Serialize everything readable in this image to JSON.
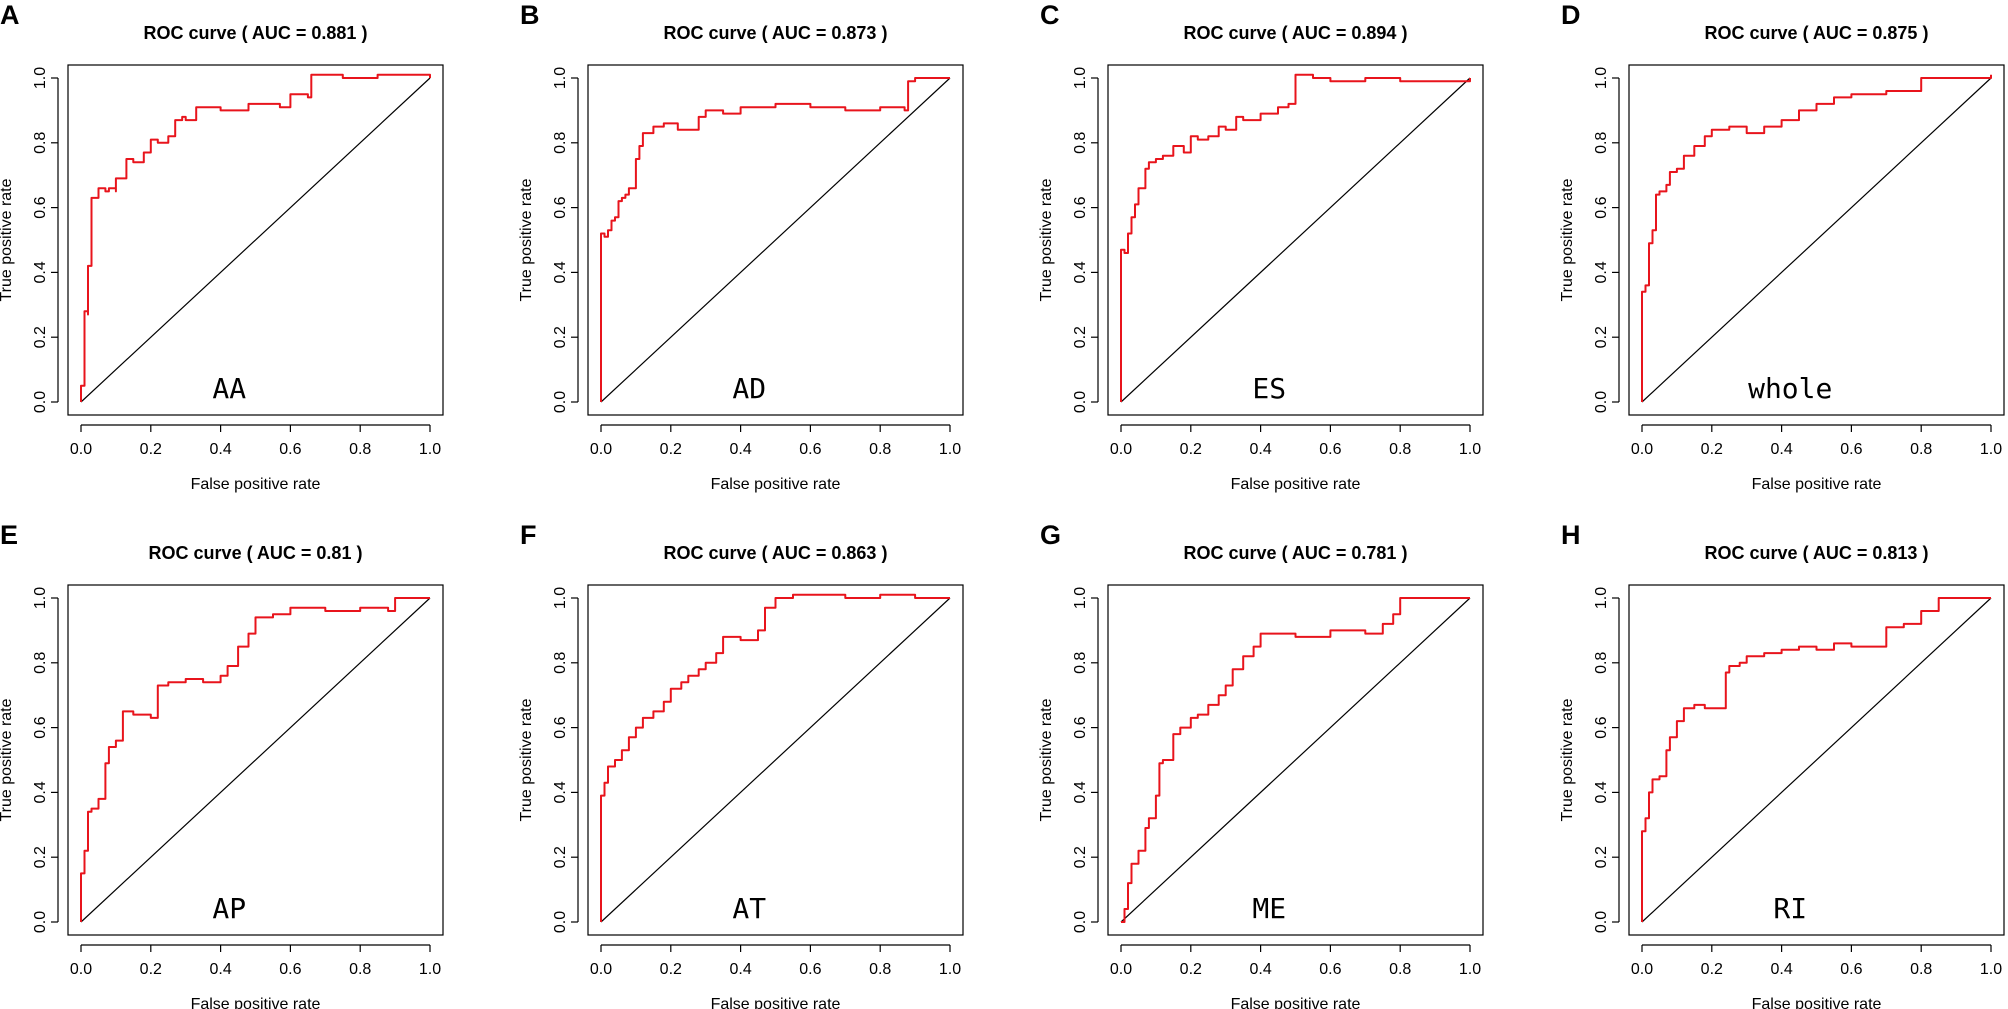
{
  "colors": {
    "curve": "#e8141c",
    "axis": "#000000",
    "background": "#ffffff"
  },
  "chart_data": [
    {
      "panel": "A",
      "type": "line",
      "title": "ROC curve ( AUC =  0.881 )",
      "label": "AA",
      "xlabel": "False positive rate",
      "ylabel": "True positive rate",
      "xlim": [
        0,
        1
      ],
      "ylim": [
        0,
        1
      ],
      "ticks": [
        "0.0",
        "0.2",
        "0.4",
        "0.6",
        "0.8",
        "1.0"
      ],
      "series": [
        {
          "name": "ROC",
          "x": [
            0,
            0,
            0.01,
            0.01,
            0.02,
            0.02,
            0.03,
            0.03,
            0.05,
            0.07,
            0.08,
            0.1,
            0.1,
            0.13,
            0.15,
            0.18,
            0.2,
            0.22,
            0.25,
            0.27,
            0.29,
            0.3,
            0.33,
            0.4,
            0.48,
            0.57,
            0.6,
            0.65,
            0.66,
            0.75,
            0.85,
            1
          ],
          "y": [
            0,
            0.05,
            0.07,
            0.28,
            0.27,
            0.42,
            0.58,
            0.63,
            0.66,
            0.65,
            0.66,
            0.65,
            0.69,
            0.75,
            0.74,
            0.77,
            0.81,
            0.8,
            0.82,
            0.87,
            0.88,
            0.87,
            0.91,
            0.9,
            0.92,
            0.91,
            0.95,
            0.94,
            1.01,
            1.0,
            1.01,
            1.0
          ]
        }
      ]
    },
    {
      "panel": "B",
      "type": "line",
      "title": "ROC curve ( AUC =  0.873 )",
      "label": "AD",
      "xlabel": "False positive rate",
      "ylabel": "True positive rate",
      "xlim": [
        0,
        1
      ],
      "ylim": [
        0,
        1
      ],
      "ticks": [
        "0.0",
        "0.2",
        "0.4",
        "0.6",
        "0.8",
        "1.0"
      ],
      "series": [
        {
          "name": "ROC",
          "x": [
            0,
            0,
            0.01,
            0.02,
            0.03,
            0.04,
            0.05,
            0.06,
            0.07,
            0.08,
            0.1,
            0.1,
            0.11,
            0.12,
            0.15,
            0.18,
            0.22,
            0.28,
            0.3,
            0.35,
            0.4,
            0.5,
            0.6,
            0.7,
            0.8,
            0.87,
            0.88,
            0.9,
            1
          ],
          "y": [
            0,
            0.52,
            0.51,
            0.53,
            0.56,
            0.57,
            0.62,
            0.63,
            0.64,
            0.66,
            0.66,
            0.75,
            0.79,
            0.83,
            0.85,
            0.86,
            0.84,
            0.88,
            0.9,
            0.89,
            0.91,
            0.92,
            0.91,
            0.9,
            0.91,
            0.9,
            0.99,
            1.0,
            1.0
          ]
        }
      ]
    },
    {
      "panel": "C",
      "type": "line",
      "title": "ROC curve ( AUC =  0.894 )",
      "label": "ES",
      "xlabel": "False positive rate",
      "ylabel": "True positive rate",
      "xlim": [
        0,
        1
      ],
      "ylim": [
        0,
        1
      ],
      "ticks": [
        "0.0",
        "0.2",
        "0.4",
        "0.6",
        "0.8",
        "1.0"
      ],
      "series": [
        {
          "name": "ROC",
          "x": [
            0,
            0,
            0.01,
            0.02,
            0.03,
            0.04,
            0.05,
            0.07,
            0.08,
            0.1,
            0.12,
            0.15,
            0.18,
            0.2,
            0.22,
            0.25,
            0.28,
            0.3,
            0.33,
            0.35,
            0.4,
            0.45,
            0.48,
            0.5,
            0.55,
            0.6,
            0.7,
            0.8,
            0.9,
            1
          ],
          "y": [
            0,
            0.47,
            0.46,
            0.52,
            0.57,
            0.61,
            0.66,
            0.72,
            0.74,
            0.75,
            0.76,
            0.79,
            0.77,
            0.82,
            0.81,
            0.82,
            0.85,
            0.84,
            0.88,
            0.87,
            0.89,
            0.91,
            0.92,
            1.01,
            1.0,
            0.99,
            1.0,
            0.99,
            0.99,
            1.0
          ]
        }
      ]
    },
    {
      "panel": "D",
      "type": "line",
      "title": "ROC curve ( AUC =  0.875 )",
      "label": "whole",
      "xlabel": "False positive rate",
      "ylabel": "True positive rate",
      "xlim": [
        0,
        1
      ],
      "ylim": [
        0,
        1
      ],
      "ticks": [
        "0.0",
        "0.2",
        "0.4",
        "0.6",
        "0.8",
        "1.0"
      ],
      "series": [
        {
          "name": "ROC",
          "x": [
            0,
            0,
            0.01,
            0.02,
            0.03,
            0.04,
            0.05,
            0.07,
            0.08,
            0.1,
            0.12,
            0.15,
            0.18,
            0.2,
            0.25,
            0.3,
            0.35,
            0.4,
            0.45,
            0.5,
            0.55,
            0.6,
            0.7,
            0.8,
            0.9,
            1
          ],
          "y": [
            0,
            0.34,
            0.36,
            0.49,
            0.53,
            0.64,
            0.65,
            0.67,
            0.71,
            0.72,
            0.76,
            0.79,
            0.82,
            0.84,
            0.85,
            0.83,
            0.85,
            0.87,
            0.9,
            0.92,
            0.94,
            0.95,
            0.96,
            1.0,
            1.0,
            1.01
          ]
        }
      ]
    },
    {
      "panel": "E",
      "type": "line",
      "title": "ROC curve ( AUC =  0.81 )",
      "label": "AP",
      "xlabel": "False positive rate",
      "ylabel": "True positive rate",
      "xlim": [
        0,
        1
      ],
      "ylim": [
        0,
        1
      ],
      "ticks": [
        "0.0",
        "0.2",
        "0.4",
        "0.6",
        "0.8",
        "1.0"
      ],
      "series": [
        {
          "name": "ROC",
          "x": [
            0,
            0,
            0.01,
            0.02,
            0.03,
            0.05,
            0.07,
            0.08,
            0.1,
            0.12,
            0.15,
            0.2,
            0.22,
            0.25,
            0.3,
            0.35,
            0.4,
            0.42,
            0.45,
            0.48,
            0.5,
            0.55,
            0.6,
            0.7,
            0.8,
            0.88,
            0.9,
            1
          ],
          "y": [
            0,
            0.15,
            0.22,
            0.34,
            0.35,
            0.38,
            0.49,
            0.54,
            0.56,
            0.65,
            0.64,
            0.63,
            0.73,
            0.74,
            0.75,
            0.74,
            0.76,
            0.79,
            0.85,
            0.89,
            0.94,
            0.95,
            0.97,
            0.96,
            0.97,
            0.96,
            1.0,
            1.0
          ]
        }
      ]
    },
    {
      "panel": "F",
      "type": "line",
      "title": "ROC curve ( AUC =  0.863 )",
      "label": "AT",
      "xlabel": "False positive rate",
      "ylabel": "True positive rate",
      "xlim": [
        0,
        1
      ],
      "ylim": [
        0,
        1
      ],
      "ticks": [
        "0.0",
        "0.2",
        "0.4",
        "0.6",
        "0.8",
        "1.0"
      ],
      "series": [
        {
          "name": "ROC",
          "x": [
            0,
            0,
            0.01,
            0.02,
            0.04,
            0.06,
            0.08,
            0.1,
            0.12,
            0.15,
            0.18,
            0.2,
            0.23,
            0.25,
            0.28,
            0.3,
            0.33,
            0.35,
            0.4,
            0.45,
            0.47,
            0.5,
            0.55,
            0.6,
            0.7,
            0.8,
            0.9,
            1
          ],
          "y": [
            0,
            0.39,
            0.43,
            0.48,
            0.5,
            0.53,
            0.57,
            0.6,
            0.63,
            0.65,
            0.68,
            0.72,
            0.74,
            0.76,
            0.78,
            0.8,
            0.83,
            0.88,
            0.87,
            0.9,
            0.97,
            1.0,
            1.01,
            1.01,
            1.0,
            1.01,
            1.0,
            1.0
          ]
        }
      ]
    },
    {
      "panel": "G",
      "type": "line",
      "title": "ROC curve ( AUC =  0.781 )",
      "label": "ME",
      "xlabel": "False positive rate",
      "ylabel": "True positive rate",
      "xlim": [
        0,
        1
      ],
      "ylim": [
        0,
        1
      ],
      "ticks": [
        "0.0",
        "0.2",
        "0.4",
        "0.6",
        "0.8",
        "1.0"
      ],
      "series": [
        {
          "name": "ROC",
          "x": [
            0,
            0.01,
            0.02,
            0.03,
            0.05,
            0.07,
            0.08,
            0.1,
            0.11,
            0.12,
            0.15,
            0.17,
            0.2,
            0.22,
            0.25,
            0.28,
            0.3,
            0.32,
            0.35,
            0.38,
            0.4,
            0.5,
            0.6,
            0.7,
            0.75,
            0.78,
            0.8,
            0.9,
            1
          ],
          "y": [
            0,
            0.04,
            0.12,
            0.18,
            0.22,
            0.29,
            0.32,
            0.39,
            0.49,
            0.5,
            0.58,
            0.6,
            0.63,
            0.64,
            0.67,
            0.7,
            0.73,
            0.78,
            0.82,
            0.85,
            0.89,
            0.88,
            0.9,
            0.89,
            0.92,
            0.95,
            1.0,
            1.0,
            1.0
          ]
        }
      ]
    },
    {
      "panel": "H",
      "type": "line",
      "title": "ROC curve ( AUC =  0.813 )",
      "label": "RI",
      "xlabel": "False positive rate",
      "ylabel": "True positive rate",
      "xlim": [
        0,
        1
      ],
      "ylim": [
        0,
        1
      ],
      "ticks": [
        "0.0",
        "0.2",
        "0.4",
        "0.6",
        "0.8",
        "1.0"
      ],
      "series": [
        {
          "name": "ROC",
          "x": [
            0,
            0,
            0.01,
            0.02,
            0.03,
            0.05,
            0.07,
            0.08,
            0.1,
            0.12,
            0.15,
            0.18,
            0.2,
            0.24,
            0.25,
            0.28,
            0.3,
            0.35,
            0.4,
            0.45,
            0.5,
            0.55,
            0.6,
            0.7,
            0.75,
            0.8,
            0.85,
            0.9,
            1
          ],
          "y": [
            0,
            0.28,
            0.32,
            0.4,
            0.44,
            0.45,
            0.53,
            0.57,
            0.62,
            0.66,
            0.67,
            0.66,
            0.66,
            0.77,
            0.79,
            0.8,
            0.82,
            0.83,
            0.84,
            0.85,
            0.84,
            0.86,
            0.85,
            0.91,
            0.92,
            0.96,
            1.0,
            1.0,
            1.0
          ]
        }
      ]
    }
  ]
}
